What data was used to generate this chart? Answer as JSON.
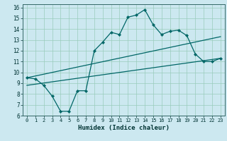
{
  "title": "",
  "xlabel": "Humidex (Indice chaleur)",
  "bg_color": "#cce8f0",
  "line_color": "#006666",
  "xlim": [
    -0.5,
    23.5
  ],
  "ylim": [
    6,
    16.3
  ],
  "xticks": [
    0,
    1,
    2,
    3,
    4,
    5,
    6,
    7,
    8,
    9,
    10,
    11,
    12,
    13,
    14,
    15,
    16,
    17,
    18,
    19,
    20,
    21,
    22,
    23
  ],
  "yticks": [
    6,
    7,
    8,
    9,
    10,
    11,
    12,
    13,
    14,
    15,
    16
  ],
  "line1_x": [
    0,
    1,
    2,
    3,
    4,
    5,
    6,
    7,
    8,
    9,
    10,
    11,
    12,
    13,
    14,
    15,
    16,
    17,
    18,
    19,
    20,
    21,
    22,
    23
  ],
  "line1_y": [
    9.5,
    9.4,
    8.8,
    7.8,
    6.4,
    6.4,
    8.3,
    8.3,
    12.0,
    12.8,
    13.7,
    13.5,
    15.1,
    15.3,
    15.8,
    14.4,
    13.5,
    13.8,
    13.9,
    13.4,
    11.7,
    11.0,
    11.0,
    11.3
  ],
  "line2_x": [
    0,
    23
  ],
  "line2_y": [
    9.5,
    13.3
  ],
  "line3_x": [
    0,
    23
  ],
  "line3_y": [
    8.8,
    11.3
  ],
  "grid_color": "#99ccbb",
  "tick_fontsize": 5.5,
  "xlabel_fontsize": 6.5
}
